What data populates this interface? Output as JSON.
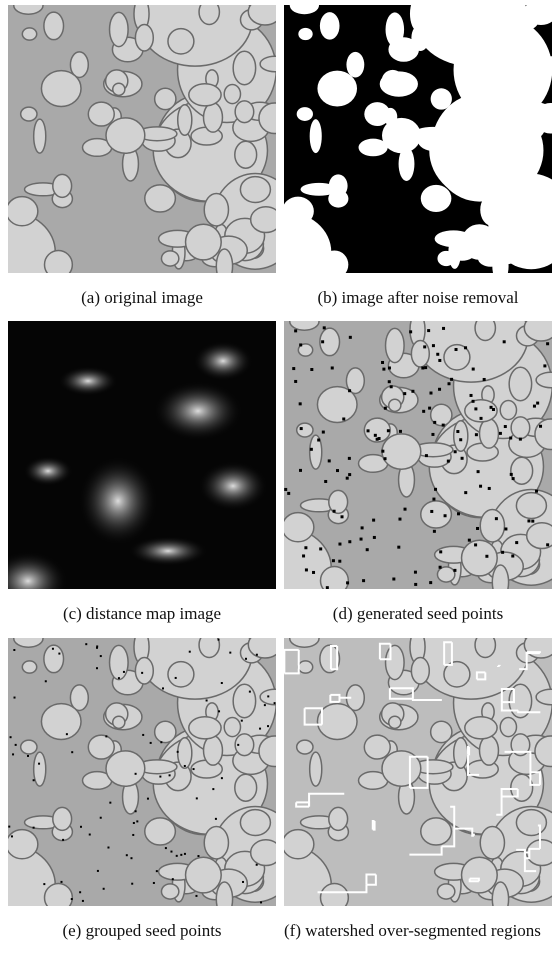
{
  "figure": {
    "panels": [
      {
        "caption": "(a) original image"
      },
      {
        "caption": "(b) image after noise removal"
      },
      {
        "caption": "(c) distance map image"
      },
      {
        "caption": "(d) generated seed points"
      },
      {
        "caption": "(e) grouped seed points"
      },
      {
        "caption": "(f) watershed over-segmented regions"
      }
    ]
  }
}
